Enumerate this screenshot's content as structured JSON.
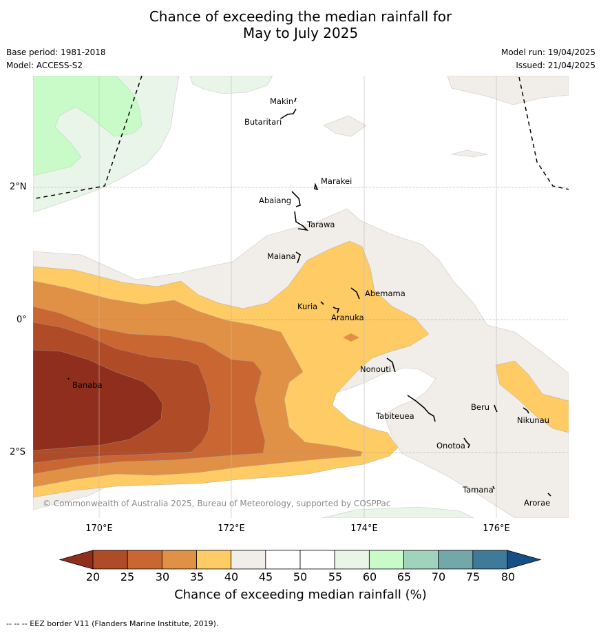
{
  "title_line1": "Chance of exceeding the median rainfall for",
  "title_line2": "May to July 2025",
  "base_period": "Base period: 1981-2018",
  "model": "Model: ACCESS-S2",
  "model_run": "Model run: 19/04/2025",
  "issued": "Issued: 21/04/2025",
  "copyright": "© Commonwealth of Australia 2025, Bureau of Meteorology, supported by COSPPac",
  "footnote": "--  --  -- EEZ border V11 (Flanders Marine Institute, 2019).",
  "lat_labels": [
    "2°N",
    "0°",
    "2°S"
  ],
  "lon_labels": [
    "170°E",
    "172°E",
    "174°E",
    "176°E"
  ],
  "places": [
    "Makin",
    "Butaritari",
    "Marakei",
    "Abaiang",
    "Tarawa",
    "Maiana",
    "Abemama",
    "Kuria",
    "Aranuka",
    "Nonouti",
    "Banaba",
    "Tabiteuea",
    "Beru",
    "Nikunau",
    "Onotoa",
    "Tamana",
    "Arorae"
  ],
  "colorbar": {
    "label": "Chance of exceeding median rainfall (%)",
    "ticks": [
      "20",
      "25",
      "30",
      "35",
      "40",
      "45",
      "50",
      "55",
      "60",
      "65",
      "70",
      "75",
      "80"
    ],
    "colors": {
      "below_20": "#8f2e1c",
      "20-25": "#b04b28",
      "25-30": "#c96632",
      "30-35": "#e09146",
      "35-40": "#fecb64",
      "40-45": "#f1ede8",
      "45-50": "#ffffff",
      "50-55": "#ffffff",
      "55-60": "#eaf5ea",
      "60-65": "#c9fbc8",
      "65-70": "#9fd3bb",
      "70-75": "#72a8a9",
      "75-80": "#3f7a9b",
      "above_80": "#164e86"
    }
  }
}
